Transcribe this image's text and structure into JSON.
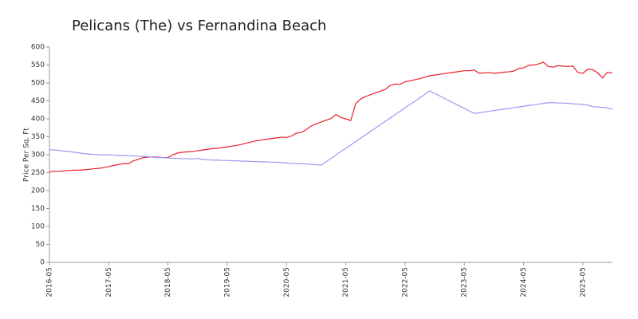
{
  "chart_data": {
    "type": "line",
    "title": "Pelicans (The) vs Fernandina Beach",
    "y_label": "Price Per Sq. Ft",
    "categories": [
      "2016-05",
      null,
      null,
      null,
      null,
      null,
      null,
      null,
      null,
      null,
      null,
      null,
      "2017-05",
      null,
      null,
      null,
      null,
      null,
      null,
      null,
      null,
      null,
      null,
      null,
      "2018-05",
      null,
      null,
      null,
      null,
      null,
      null,
      null,
      null,
      null,
      null,
      null,
      "2019-05",
      null,
      null,
      null,
      null,
      null,
      null,
      null,
      null,
      null,
      null,
      null,
      "2020-05",
      null,
      null,
      null,
      null,
      null,
      null,
      null,
      null,
      null,
      null,
      null,
      "2021-05",
      null,
      null,
      null,
      null,
      null,
      null,
      null,
      null,
      null,
      null,
      null,
      "2022-05",
      null,
      null,
      null,
      null,
      null,
      null,
      null,
      null,
      null,
      null,
      null,
      "2023-05",
      null,
      null,
      null,
      null,
      null,
      null,
      null,
      null,
      null,
      null,
      null,
      "2024-05",
      null,
      null,
      null,
      null,
      null,
      null,
      null,
      null,
      null,
      null,
      null,
      "2025-05",
      null,
      null,
      null,
      null,
      null,
      null
    ],
    "series": [
      {
        "name": "Pelicans (The)",
        "color": "#e8202a",
        "values": [
          252,
          254,
          254,
          255,
          256,
          257,
          257,
          258,
          259,
          261,
          262,
          264,
          267,
          270,
          273,
          275,
          275,
          283,
          287,
          292,
          293,
          294,
          293,
          292,
          292,
          300,
          305,
          307,
          308,
          309,
          311,
          313,
          315,
          317,
          318,
          320,
          322,
          324,
          326,
          329,
          333,
          336,
          339,
          341,
          343,
          345,
          347,
          349,
          348,
          352,
          360,
          362,
          370,
          380,
          386,
          391,
          396,
          401,
          412,
          404,
          400,
          395,
          442,
          455,
          462,
          467,
          472,
          477,
          482,
          493,
          497,
          496,
          503,
          506,
          509,
          512,
          516,
          520,
          522,
          524,
          526,
          528,
          530,
          532,
          534,
          534,
          536,
          527,
          528,
          529,
          527,
          528,
          530,
          531,
          533,
          540,
          542,
          549,
          550,
          553,
          558,
          546,
          544,
          548,
          547,
          546,
          547,
          529,
          527,
          538,
          537,
          528,
          514,
          530,
          527
        ]
      },
      {
        "name": "Fernandina Beach",
        "color": "#9a9af0",
        "values": [
          314,
          313,
          312,
          310,
          309,
          307,
          305,
          303,
          302,
          301,
          300,
          299,
          300,
          299,
          298,
          298,
          297,
          297,
          296,
          295,
          294,
          293,
          292,
          292,
          291,
          290,
          290,
          289,
          289,
          288,
          290,
          287,
          286,
          285,
          285,
          284,
          284,
          283,
          283,
          282,
          282,
          281,
          281,
          280,
          280,
          279,
          279,
          278,
          277,
          276,
          275,
          275,
          274,
          273,
          272,
          271,
          280,
          290,
          299,
          309,
          318,
          327,
          337,
          346,
          355,
          365,
          374,
          384,
          393,
          402,
          412,
          421,
          431,
          440,
          449,
          459,
          468,
          478,
          471,
          464,
          457,
          450,
          443,
          436,
          429,
          422,
          415,
          417,
          419,
          421,
          423,
          425,
          427,
          429,
          431,
          433,
          435,
          437,
          439,
          441,
          443,
          445,
          445,
          444,
          444,
          443,
          442,
          441,
          440,
          438,
          434,
          433,
          432,
          430,
          427
        ]
      }
    ],
    "ylim": [
      0,
      600
    ],
    "yticks": [
      0,
      50,
      100,
      150,
      200,
      250,
      300,
      350,
      400,
      450,
      500,
      550,
      600
    ],
    "grid": false
  }
}
